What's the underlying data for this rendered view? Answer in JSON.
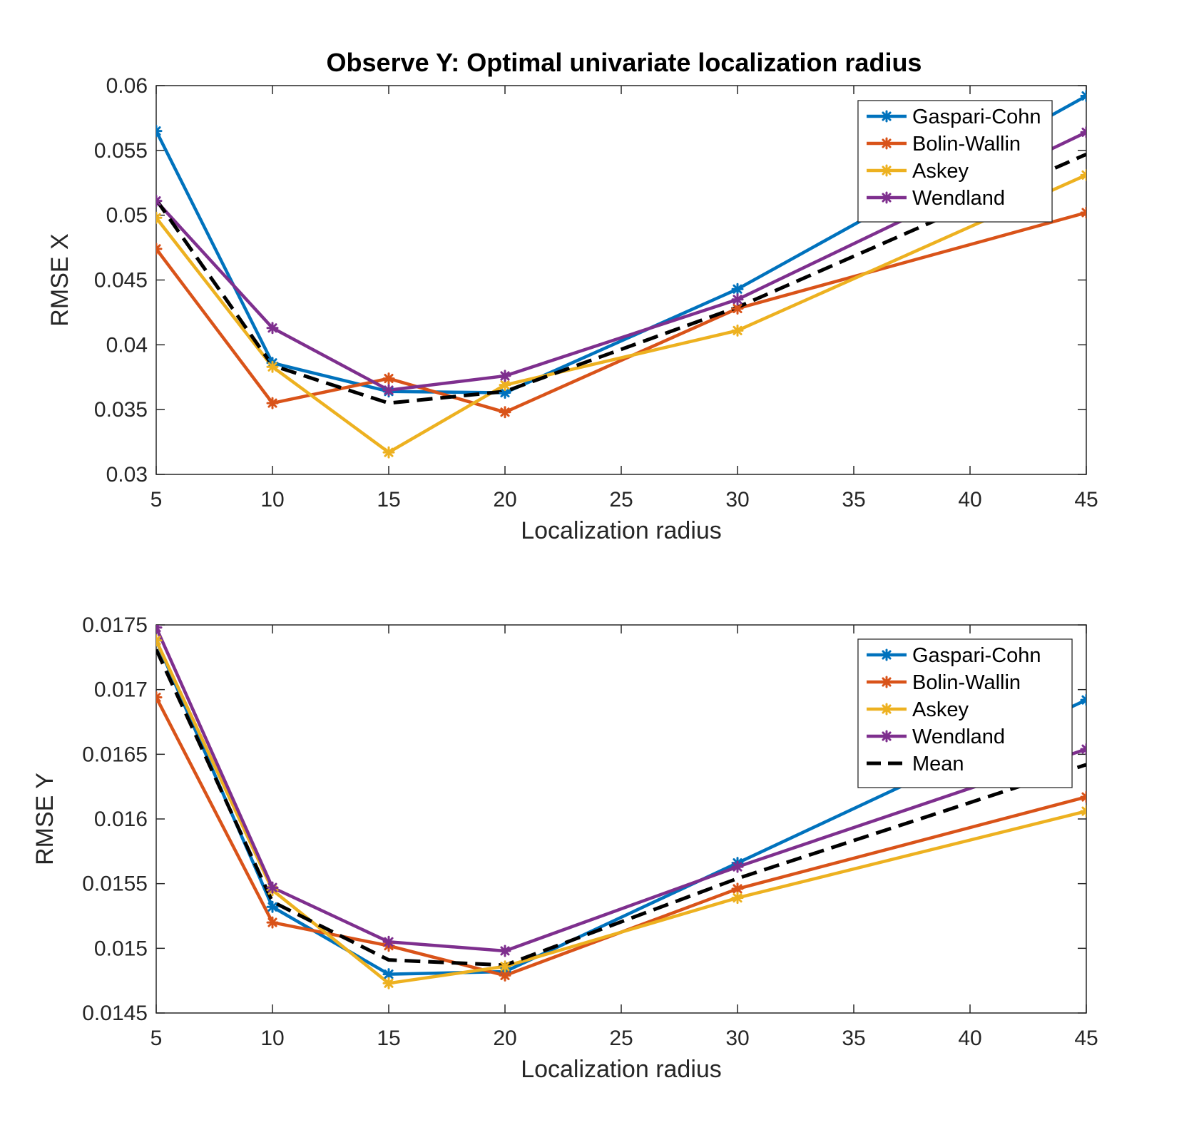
{
  "figure": {
    "title": "Observe Y: Optimal univariate localization radius"
  },
  "chart_data": [
    {
      "type": "line",
      "title": "Observe Y: Optimal univariate localization radius",
      "xlabel": "Localization radius",
      "ylabel": "RMSE X",
      "xlim": [
        5,
        45
      ],
      "ylim": [
        0.03,
        0.06
      ],
      "xticks": [
        5,
        10,
        15,
        20,
        25,
        30,
        35,
        40,
        45
      ],
      "yticks": [
        0.03,
        0.035,
        0.04,
        0.045,
        0.05,
        0.055,
        0.06
      ],
      "ytick_labels": [
        "0.03",
        "0.035",
        "0.04",
        "0.045",
        "0.05",
        "0.055",
        "0.06"
      ],
      "x": [
        5,
        10,
        15,
        20,
        30,
        45
      ],
      "grid": false,
      "legend_position": "top-right",
      "series": [
        {
          "name": "Gaspari-Cohn",
          "color": "#0072BD",
          "style": "solid",
          "marker": "asterisk",
          "values": [
            0.0565,
            0.0386,
            0.0364,
            0.0363,
            0.0443,
            0.0592
          ]
        },
        {
          "name": "Bolin-Wallin",
          "color": "#D95319",
          "style": "solid",
          "marker": "asterisk",
          "values": [
            0.0474,
            0.0355,
            0.0374,
            0.0348,
            0.0428,
            0.0502
          ]
        },
        {
          "name": "Askey",
          "color": "#EDB120",
          "style": "solid",
          "marker": "asterisk",
          "values": [
            0.0498,
            0.0383,
            0.0317,
            0.0369,
            0.0411,
            0.0531
          ]
        },
        {
          "name": "Wendland",
          "color": "#7E2F8E",
          "style": "solid",
          "marker": "asterisk",
          "values": [
            0.0511,
            0.0413,
            0.0365,
            0.0376,
            0.0435,
            0.0564
          ]
        },
        {
          "name": "Mean",
          "color": "#000000",
          "style": "dashed",
          "marker": "none",
          "in_legend": false,
          "values": [
            0.0512,
            0.0384,
            0.0355,
            0.0364,
            0.0429,
            0.0547
          ]
        }
      ]
    },
    {
      "type": "line",
      "title": "",
      "xlabel": "Localization radius",
      "ylabel": "RMSE Y",
      "xlim": [
        5,
        45
      ],
      "ylim": [
        0.0145,
        0.0175
      ],
      "xticks": [
        5,
        10,
        15,
        20,
        25,
        30,
        35,
        40,
        45
      ],
      "yticks": [
        0.0145,
        0.015,
        0.0155,
        0.016,
        0.0165,
        0.017,
        0.0175
      ],
      "ytick_labels": [
        "0.0145",
        "0.015",
        "0.0155",
        "0.016",
        "0.0165",
        "0.017",
        "0.0175"
      ],
      "x": [
        5,
        10,
        15,
        20,
        30,
        45
      ],
      "grid": false,
      "legend_position": "top-right",
      "series": [
        {
          "name": "Gaspari-Cohn",
          "color": "#0072BD",
          "style": "solid",
          "marker": "asterisk",
          "values": [
            0.01738,
            0.01532,
            0.0148,
            0.01482,
            0.01566,
            0.01692
          ]
        },
        {
          "name": "Bolin-Wallin",
          "color": "#D95319",
          "style": "solid",
          "marker": "asterisk",
          "values": [
            0.01694,
            0.0152,
            0.01502,
            0.01479,
            0.01546,
            0.01617
          ]
        },
        {
          "name": "Askey",
          "color": "#EDB120",
          "style": "solid",
          "marker": "asterisk",
          "values": [
            0.01738,
            0.01545,
            0.01473,
            0.01486,
            0.01539,
            0.01606
          ]
        },
        {
          "name": "Wendland",
          "color": "#7E2F8E",
          "style": "solid",
          "marker": "asterisk",
          "values": [
            0.01748,
            0.01547,
            0.01505,
            0.01498,
            0.01563,
            0.01654
          ]
        },
        {
          "name": "Mean",
          "color": "#000000",
          "style": "dashed",
          "marker": "none",
          "in_legend": true,
          "values": [
            0.01731,
            0.01536,
            0.01491,
            0.01487,
            0.01554,
            0.01642
          ]
        }
      ]
    }
  ]
}
